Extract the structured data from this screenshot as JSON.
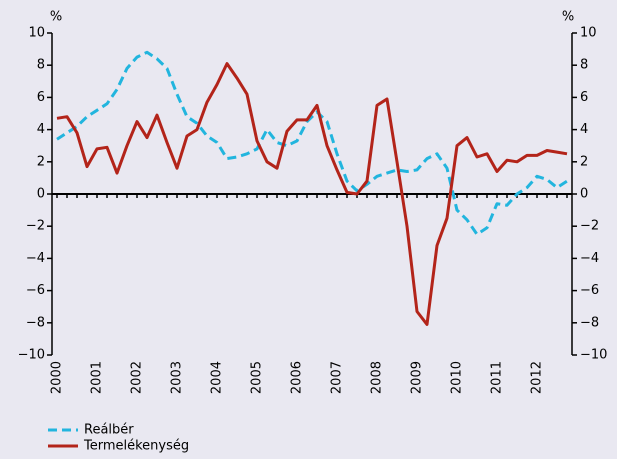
{
  "chart_data": {
    "type": "line",
    "y_unit": "%",
    "y2_unit": "%",
    "categories": [
      "2000",
      null,
      null,
      null,
      "2001",
      null,
      null,
      null,
      "2002",
      null,
      null,
      null,
      "2003",
      null,
      null,
      null,
      "2004",
      null,
      null,
      null,
      "2005",
      null,
      null,
      null,
      "2006",
      null,
      null,
      null,
      "2007",
      null,
      null,
      null,
      "2008",
      null,
      null,
      null,
      "2009",
      null,
      null,
      null,
      "2010",
      null,
      null,
      null,
      "2011",
      null,
      null,
      null,
      "2012",
      null,
      null,
      null
    ],
    "series": [
      {
        "name": "Reálbér",
        "color": "#22b5de",
        "dashed": true,
        "values": [
          3.4,
          3.8,
          4.2,
          4.8,
          5.2,
          5.6,
          6.5,
          7.8,
          8.5,
          8.8,
          8.4,
          7.8,
          6.2,
          4.8,
          4.4,
          3.6,
          3.2,
          2.2,
          2.3,
          2.5,
          2.8,
          4.0,
          3.2,
          3.0,
          3.3,
          4.5,
          5.1,
          4.5,
          2.5,
          0.8,
          0.2,
          0.6,
          1.1,
          1.3,
          1.5,
          1.4,
          1.5,
          2.2,
          2.5,
          1.6,
          -1.0,
          -1.6,
          -2.5,
          -2.1,
          -0.6,
          -0.7,
          0.0,
          0.4,
          1.1,
          0.9,
          0.4,
          0.8
        ]
      },
      {
        "name": "Termelékenység",
        "color": "#b3241a",
        "dashed": false,
        "values": [
          4.7,
          4.8,
          3.8,
          1.7,
          2.8,
          2.9,
          1.3,
          3.0,
          4.5,
          3.5,
          4.9,
          3.2,
          1.6,
          3.6,
          4.0,
          5.7,
          6.8,
          8.1,
          7.2,
          6.2,
          3.3,
          2.0,
          1.6,
          3.9,
          4.6,
          4.6,
          5.5,
          3.0,
          1.5,
          0.1,
          0.0,
          0.8,
          5.5,
          5.9,
          2.0,
          -2.0,
          -7.3,
          -8.1,
          -3.2,
          -1.5,
          3.0,
          3.5,
          2.3,
          2.5,
          1.4,
          2.1,
          2.0,
          2.4,
          2.4,
          2.7,
          2.6,
          2.5
        ]
      }
    ],
    "ylim": [
      -10,
      10
    ],
    "yticks": [
      {
        "value": -10,
        "label": "−10"
      },
      {
        "value": -8,
        "label": "−8"
      },
      {
        "value": -6,
        "label": "−6"
      },
      {
        "value": -4,
        "label": "−4"
      },
      {
        "value": -2,
        "label": "−2"
      },
      0,
      2,
      4,
      6,
      8,
      10
    ],
    "y2lim": [
      -10,
      10
    ],
    "y2ticks": [
      {
        "value": -10,
        "label": "−10"
      },
      {
        "value": -8,
        "label": "−8"
      },
      {
        "value": -6,
        "label": "−6"
      },
      {
        "value": -4,
        "label": "−4"
      },
      {
        "value": -2,
        "label": "−2"
      },
      0,
      2,
      4,
      6,
      8,
      10
    ],
    "legend": "bottom-left"
  }
}
